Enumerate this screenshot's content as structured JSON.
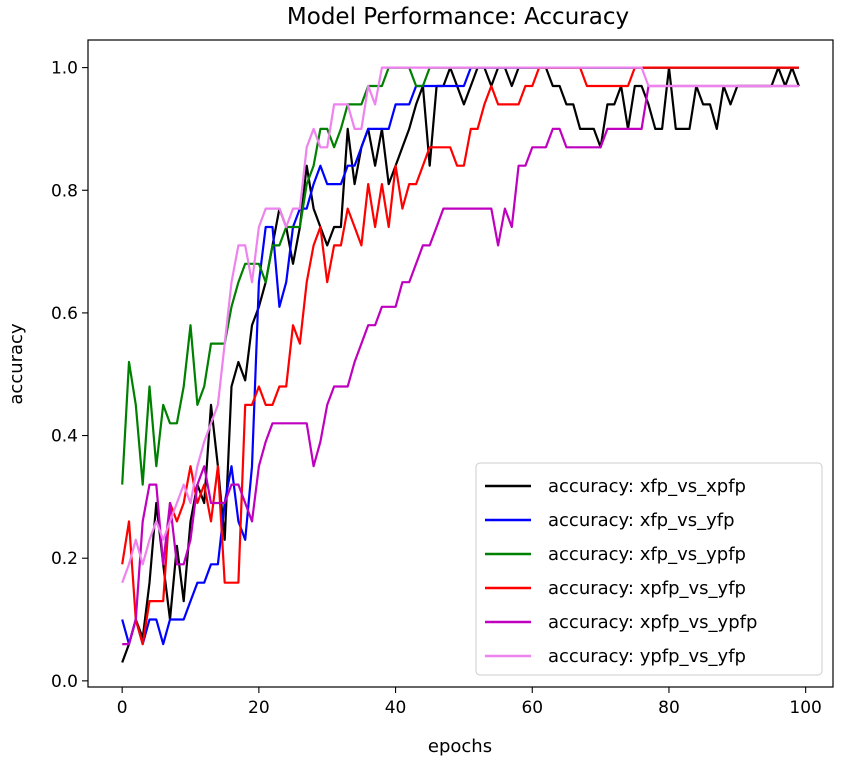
{
  "chart_data": {
    "type": "line",
    "title": "Model Performance: Accuracy",
    "xlabel": "epochs",
    "ylabel": "accuracy",
    "xlim": [
      -5,
      104
    ],
    "ylim": [
      -0.01,
      1.045
    ],
    "xticks": [
      "0",
      "20",
      "40",
      "60",
      "80",
      "100"
    ],
    "yticks": [
      "0.0",
      "0.2",
      "0.4",
      "0.6",
      "0.8",
      "1.0"
    ],
    "grid": false,
    "legend_position": "lower-right",
    "series": [
      {
        "name": "accuracy: xfp_vs_xpfp",
        "color": "#000000",
        "values": [
          0.03,
          0.06,
          0.1,
          0.07,
          0.16,
          0.29,
          0.19,
          0.1,
          0.22,
          0.13,
          0.26,
          0.32,
          0.29,
          0.45,
          0.35,
          0.23,
          0.48,
          0.52,
          0.49,
          0.58,
          0.61,
          0.65,
          0.71,
          0.77,
          0.74,
          0.68,
          0.74,
          0.84,
          0.77,
          0.74,
          0.71,
          0.74,
          0.74,
          0.9,
          0.81,
          0.87,
          0.9,
          0.84,
          0.9,
          0.81,
          0.84,
          0.87,
          0.9,
          0.94,
          0.97,
          0.84,
          0.97,
          0.97,
          1.0,
          0.97,
          0.94,
          0.97,
          1.0,
          1.0,
          0.97,
          1.0,
          1.0,
          0.97,
          1.0,
          1.0,
          1.0,
          1.0,
          1.0,
          0.97,
          0.97,
          0.94,
          0.94,
          0.9,
          0.9,
          0.9,
          0.87,
          0.94,
          0.94,
          0.97,
          0.9,
          0.97,
          0.97,
          0.94,
          0.9,
          0.9,
          1.0,
          0.9,
          0.9,
          0.9,
          0.97,
          0.94,
          0.94,
          0.9,
          0.97,
          0.94,
          0.97,
          0.97,
          0.97,
          0.97,
          0.97,
          0.97,
          1.0,
          0.97,
          1.0,
          0.97
        ]
      },
      {
        "name": "accuracy: xfp_vs_yfp",
        "color": "#0000ff",
        "values": [
          0.1,
          0.06,
          0.1,
          0.06,
          0.1,
          0.1,
          0.06,
          0.1,
          0.1,
          0.1,
          0.13,
          0.16,
          0.16,
          0.19,
          0.19,
          0.29,
          0.35,
          0.26,
          0.23,
          0.35,
          0.65,
          0.74,
          0.74,
          0.61,
          0.65,
          0.74,
          0.77,
          0.77,
          0.81,
          0.84,
          0.81,
          0.81,
          0.81,
          0.84,
          0.84,
          0.87,
          0.9,
          0.9,
          0.9,
          0.9,
          0.94,
          0.94,
          0.94,
          0.97,
          0.97,
          0.97,
          0.97,
          0.97,
          0.97,
          0.97,
          0.97,
          1.0,
          1.0,
          1.0,
          1.0,
          1.0,
          1.0,
          1.0,
          1.0,
          1.0,
          1.0,
          1.0,
          1.0,
          1.0,
          1.0,
          1.0,
          1.0,
          1.0,
          1.0,
          1.0,
          1.0,
          1.0,
          1.0,
          1.0,
          1.0,
          1.0,
          1.0,
          1.0,
          1.0,
          1.0,
          1.0,
          1.0,
          1.0,
          1.0,
          1.0,
          1.0,
          1.0,
          1.0,
          1.0,
          1.0,
          1.0,
          1.0,
          1.0,
          1.0,
          1.0,
          1.0,
          1.0,
          1.0,
          1.0,
          1.0
        ]
      },
      {
        "name": "accuracy: xfp_vs_ypfp",
        "color": "#008000",
        "values": [
          0.32,
          0.52,
          0.45,
          0.32,
          0.48,
          0.35,
          0.45,
          0.42,
          0.42,
          0.48,
          0.58,
          0.45,
          0.48,
          0.55,
          0.55,
          0.55,
          0.61,
          0.65,
          0.68,
          0.68,
          0.68,
          0.65,
          0.71,
          0.71,
          0.74,
          0.74,
          0.74,
          0.81,
          0.84,
          0.9,
          0.9,
          0.87,
          0.9,
          0.94,
          0.94,
          0.94,
          0.97,
          0.97,
          0.97,
          1.0,
          1.0,
          1.0,
          1.0,
          0.97,
          0.97,
          1.0,
          1.0,
          1.0,
          1.0,
          1.0,
          1.0,
          1.0,
          1.0,
          1.0,
          1.0,
          1.0,
          1.0,
          1.0,
          1.0,
          1.0,
          1.0,
          1.0,
          1.0,
          1.0,
          1.0,
          1.0,
          1.0,
          1.0,
          1.0,
          1.0,
          1.0,
          1.0,
          1.0,
          1.0,
          1.0,
          1.0,
          1.0,
          1.0,
          1.0,
          1.0,
          1.0,
          1.0,
          1.0,
          1.0,
          1.0,
          1.0,
          1.0,
          1.0,
          1.0,
          1.0,
          1.0,
          1.0,
          1.0,
          1.0,
          1.0,
          1.0,
          1.0,
          1.0,
          1.0,
          1.0
        ]
      },
      {
        "name": "accuracy: xpfp_vs_yfp",
        "color": "#ff0000",
        "values": [
          0.19,
          0.26,
          0.1,
          0.06,
          0.13,
          0.13,
          0.13,
          0.29,
          0.26,
          0.29,
          0.35,
          0.29,
          0.32,
          0.26,
          0.35,
          0.16,
          0.16,
          0.16,
          0.45,
          0.45,
          0.48,
          0.45,
          0.45,
          0.48,
          0.48,
          0.58,
          0.55,
          0.65,
          0.71,
          0.74,
          0.65,
          0.71,
          0.71,
          0.77,
          0.74,
          0.71,
          0.81,
          0.74,
          0.81,
          0.74,
          0.84,
          0.77,
          0.81,
          0.81,
          0.84,
          0.87,
          0.87,
          0.87,
          0.87,
          0.84,
          0.84,
          0.9,
          0.9,
          0.94,
          0.97,
          0.94,
          0.94,
          0.94,
          0.94,
          0.97,
          0.97,
          1.0,
          1.0,
          1.0,
          1.0,
          1.0,
          1.0,
          1.0,
          0.97,
          0.97,
          0.97,
          0.97,
          0.97,
          0.97,
          0.97,
          1.0,
          1.0,
          1.0,
          1.0,
          1.0,
          1.0,
          1.0,
          1.0,
          1.0,
          1.0,
          1.0,
          1.0,
          1.0,
          1.0,
          1.0,
          1.0,
          1.0,
          1.0,
          1.0,
          1.0,
          1.0,
          1.0,
          1.0,
          1.0,
          1.0
        ]
      },
      {
        "name": "accuracy: xpfp_vs_ypfp",
        "color": "#bf00bf",
        "values": [
          0.06,
          0.06,
          0.1,
          0.26,
          0.32,
          0.32,
          0.19,
          0.29,
          0.19,
          0.19,
          0.23,
          0.32,
          0.35,
          0.29,
          0.29,
          0.29,
          0.32,
          0.32,
          0.29,
          0.26,
          0.35,
          0.39,
          0.42,
          0.42,
          0.42,
          0.42,
          0.42,
          0.42,
          0.35,
          0.39,
          0.45,
          0.48,
          0.48,
          0.48,
          0.52,
          0.55,
          0.58,
          0.58,
          0.61,
          0.61,
          0.61,
          0.65,
          0.65,
          0.68,
          0.71,
          0.71,
          0.74,
          0.77,
          0.77,
          0.77,
          0.77,
          0.77,
          0.77,
          0.77,
          0.77,
          0.71,
          0.77,
          0.74,
          0.84,
          0.84,
          0.87,
          0.87,
          0.87,
          0.9,
          0.9,
          0.87,
          0.87,
          0.87,
          0.87,
          0.87,
          0.87,
          0.9,
          0.9,
          0.9,
          0.9,
          0.9,
          0.9,
          0.97,
          0.97,
          0.97,
          0.97,
          0.97,
          0.97,
          0.97,
          0.97,
          0.97,
          0.97,
          0.97,
          0.97,
          0.97,
          0.97,
          0.97,
          0.97,
          0.97,
          0.97,
          0.97,
          0.97,
          0.97,
          0.97,
          0.97
        ]
      },
      {
        "name": "accuracy: ypfp_vs_yfp",
        "color": "#ee82ee",
        "values": [
          0.16,
          0.19,
          0.23,
          0.19,
          0.23,
          0.26,
          0.23,
          0.26,
          0.29,
          0.32,
          0.29,
          0.35,
          0.39,
          0.42,
          0.45,
          0.55,
          0.65,
          0.71,
          0.71,
          0.65,
          0.74,
          0.77,
          0.77,
          0.77,
          0.74,
          0.77,
          0.77,
          0.87,
          0.9,
          0.87,
          0.87,
          0.94,
          0.94,
          0.94,
          0.9,
          0.9,
          0.97,
          0.94,
          1.0,
          1.0,
          1.0,
          1.0,
          1.0,
          1.0,
          1.0,
          1.0,
          1.0,
          1.0,
          1.0,
          1.0,
          1.0,
          1.0,
          1.0,
          1.0,
          1.0,
          1.0,
          1.0,
          1.0,
          1.0,
          1.0,
          1.0,
          1.0,
          1.0,
          1.0,
          1.0,
          1.0,
          1.0,
          1.0,
          1.0,
          1.0,
          1.0,
          1.0,
          1.0,
          1.0,
          1.0,
          1.0,
          1.0,
          0.97,
          0.97,
          0.97,
          0.97,
          0.97,
          0.97,
          0.97,
          0.97,
          0.97,
          0.97,
          0.97,
          0.97,
          0.97,
          0.97,
          0.97,
          0.97,
          0.97,
          0.97,
          0.97,
          0.97,
          0.97,
          0.97,
          0.97
        ]
      }
    ]
  }
}
